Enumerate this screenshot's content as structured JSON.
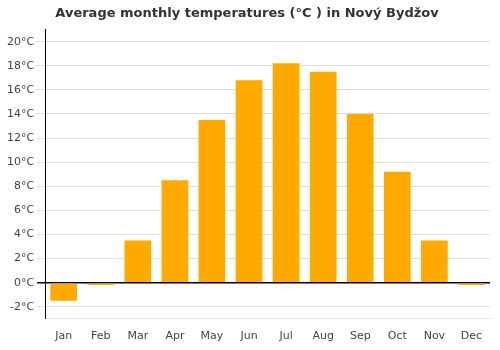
{
  "chart_data": {
    "type": "bar",
    "title": "Average monthly temperatures (°C ) in Nový Bydžov",
    "categories": [
      "Jan",
      "Feb",
      "Mar",
      "Apr",
      "May",
      "Jun",
      "Jul",
      "Aug",
      "Sep",
      "Oct",
      "Nov",
      "Dec"
    ],
    "values": [
      -1.5,
      -0.2,
      3.5,
      8.5,
      13.5,
      16.8,
      18.2,
      17.5,
      14.0,
      9.2,
      3.5,
      -0.2
    ],
    "color": "#FFAA00",
    "ylim": [
      -3,
      21
    ],
    "yticks": [
      {
        "value": -2,
        "label": "-2°C"
      },
      {
        "value": 0,
        "label": "0°C"
      },
      {
        "value": 2,
        "label": "2°C"
      },
      {
        "value": 4,
        "label": "4°C"
      },
      {
        "value": 6,
        "label": "6°C"
      },
      {
        "value": 8,
        "label": "8°C"
      },
      {
        "value": 10,
        "label": "10°C"
      },
      {
        "value": 12,
        "label": "12°C"
      },
      {
        "value": 14,
        "label": "14°C"
      },
      {
        "value": 16,
        "label": "16°C"
      },
      {
        "value": 18,
        "label": "18°C"
      },
      {
        "value": 20,
        "label": "20°C"
      }
    ],
    "grid": true
  }
}
